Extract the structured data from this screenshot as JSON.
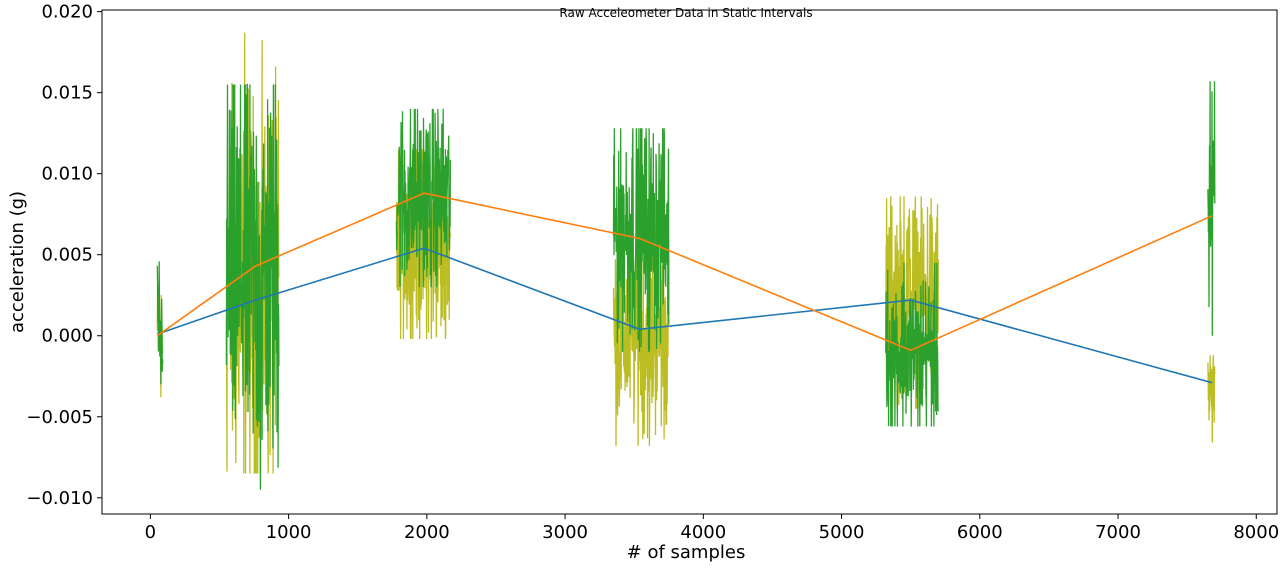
{
  "chart_data": {
    "type": "line",
    "title": "Raw Acceleometer Data in Static Intervals",
    "xlabel": "# of samples",
    "ylabel": "acceleration (g)",
    "xlim": [
      -350,
      8150
    ],
    "ylim": [
      -0.011,
      0.0201
    ],
    "xticks": [
      0,
      1000,
      2000,
      3000,
      4000,
      5000,
      6000,
      7000,
      8000
    ],
    "xtick_labels": [
      "0",
      "1000",
      "2000",
      "3000",
      "4000",
      "5000",
      "6000",
      "7000",
      "8000"
    ],
    "yticks": [
      -0.01,
      -0.005,
      0.0,
      0.005,
      0.01,
      0.015,
      0.02
    ],
    "ytick_labels": [
      "−0.010",
      "−0.005",
      "0.000",
      "0.005",
      "0.010",
      "0.015",
      "0.020"
    ],
    "grid": false,
    "legend": "none",
    "colors": {
      "blue": "#1f77b4",
      "orange": "#ff7f0e",
      "green": "#2ca02c",
      "olive": "#bcbd22"
    },
    "noise_series": [
      {
        "color": "olive",
        "segments": [
          {
            "x_start": 50,
            "x_end": 90,
            "min": -0.0038,
            "max": 0.0034,
            "center": 0.0
          },
          {
            "x_start": 550,
            "x_end": 930,
            "min": -0.0085,
            "max": 0.0187,
            "center": 0.0025
          },
          {
            "x_start": 1780,
            "x_end": 2170,
            "min": -0.0002,
            "max": 0.0115,
            "center": 0.0055
          },
          {
            "x_start": 3350,
            "x_end": 3750,
            "min": -0.0068,
            "max": 0.006,
            "center": 0.0002
          },
          {
            "x_start": 5320,
            "x_end": 5700,
            "min": -0.0045,
            "max": 0.0086,
            "center": 0.0025
          },
          {
            "x_start": 7650,
            "x_end": 7700,
            "min": -0.0066,
            "max": -0.0012,
            "center": -0.0035
          }
        ]
      },
      {
        "color": "green",
        "segments": [
          {
            "x_start": 50,
            "x_end": 90,
            "min": -0.003,
            "max": 0.0046,
            "center": 0.0005
          },
          {
            "x_start": 550,
            "x_end": 930,
            "min": -0.0095,
            "max": 0.0155,
            "center": 0.004
          },
          {
            "x_start": 1780,
            "x_end": 2170,
            "min": 0.003,
            "max": 0.014,
            "center": 0.0085
          },
          {
            "x_start": 3350,
            "x_end": 3750,
            "min": -0.001,
            "max": 0.0128,
            "center": 0.0065
          },
          {
            "x_start": 5320,
            "x_end": 5700,
            "min": -0.0056,
            "max": 0.0045,
            "center": -0.001
          },
          {
            "x_start": 7650,
            "x_end": 7700,
            "min": 0.0,
            "max": 0.0157,
            "center": 0.0075
          }
        ]
      }
    ],
    "series": [
      {
        "color": "blue",
        "x": [
          50,
          760,
          1980,
          3540,
          5500,
          7680
        ],
        "y": [
          0.0001,
          0.0022,
          0.0054,
          0.0004,
          0.0022,
          -0.0029
        ]
      },
      {
        "color": "orange",
        "x": [
          50,
          760,
          1980,
          3540,
          5500,
          7680
        ],
        "y": [
          0.0,
          0.0043,
          0.0088,
          0.006,
          -0.0009,
          0.0074
        ]
      }
    ]
  }
}
